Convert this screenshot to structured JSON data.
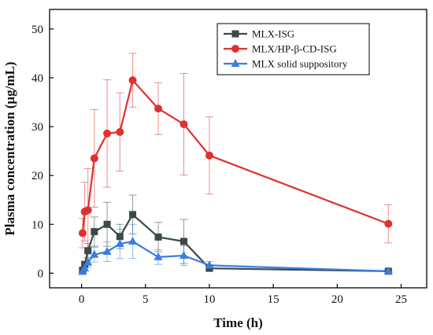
{
  "chart_data": {
    "type": "line",
    "xlabel": "Time (h)",
    "ylabel": "Plasma concentration (μg/mL)",
    "xlim": [
      -2.5,
      27
    ],
    "ylim": [
      -3,
      54
    ],
    "x_ticks": [
      0,
      5,
      10,
      15,
      20,
      25
    ],
    "y_ticks": [
      0,
      10,
      20,
      30,
      40,
      50
    ],
    "grid": false,
    "legend_position": "top-right",
    "series": [
      {
        "name": "MLX-ISG",
        "color": "#3a4a4a",
        "marker": "square",
        "points": [
          {
            "x": 0.083,
            "y": 0.6,
            "err": 0.4
          },
          {
            "x": 0.25,
            "y": 1.8,
            "err": 0.6
          },
          {
            "x": 0.5,
            "y": 4.6,
            "err": 1.5
          },
          {
            "x": 1,
            "y": 8.5,
            "err": 3.0
          },
          {
            "x": 2,
            "y": 10.0,
            "err": 4.5
          },
          {
            "x": 3,
            "y": 7.5,
            "err": 2.5
          },
          {
            "x": 4,
            "y": 12.0,
            "err": 4.0
          },
          {
            "x": 6,
            "y": 7.4,
            "err": 3.0
          },
          {
            "x": 8,
            "y": 6.5,
            "err": 4.5
          },
          {
            "x": 10,
            "y": 1.0,
            "err": 0.4
          },
          {
            "x": 24,
            "y": 0.4,
            "err": 0.2
          }
        ]
      },
      {
        "name": "MLX/HP-β-CD-ISG",
        "color": "#e03030",
        "marker": "circle",
        "points": [
          {
            "x": 0.083,
            "y": 8.2,
            "err": 3.0
          },
          {
            "x": 0.25,
            "y": 12.6,
            "err": 6.0
          },
          {
            "x": 0.5,
            "y": 12.9,
            "err": 8.5
          },
          {
            "x": 1,
            "y": 23.5,
            "err": 10.0
          },
          {
            "x": 2,
            "y": 28.6,
            "err": 11.0
          },
          {
            "x": 3,
            "y": 28.9,
            "err": 8.0
          },
          {
            "x": 4,
            "y": 39.5,
            "err": 5.5
          },
          {
            "x": 6,
            "y": 33.7,
            "err": 5.3
          },
          {
            "x": 8,
            "y": 30.5,
            "err": 10.4
          },
          {
            "x": 10,
            "y": 24.1,
            "err": 7.9
          },
          {
            "x": 24,
            "y": 10.1,
            "err": 3.9
          }
        ]
      },
      {
        "name": "MLX solid suppository",
        "color": "#3a7fe0",
        "marker": "triangle",
        "points": [
          {
            "x": 0.083,
            "y": 0.3,
            "err": 0.3
          },
          {
            "x": 0.25,
            "y": 1.0,
            "err": 0.5
          },
          {
            "x": 0.5,
            "y": 2.2,
            "err": 1.0
          },
          {
            "x": 1,
            "y": 3.8,
            "err": 1.5
          },
          {
            "x": 2,
            "y": 4.4,
            "err": 2.0
          },
          {
            "x": 3,
            "y": 6.0,
            "err": 3.0
          },
          {
            "x": 4,
            "y": 6.5,
            "err": 3.5
          },
          {
            "x": 6,
            "y": 3.3,
            "err": 1.5
          },
          {
            "x": 8,
            "y": 3.6,
            "err": 2.0
          },
          {
            "x": 10,
            "y": 1.6,
            "err": 0.8
          },
          {
            "x": 24,
            "y": 0.4,
            "err": 0.2
          }
        ]
      }
    ]
  }
}
